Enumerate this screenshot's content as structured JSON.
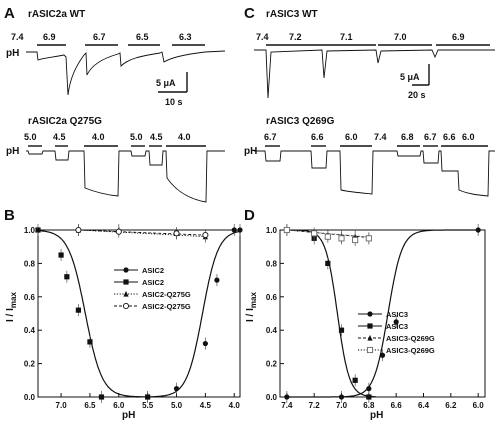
{
  "panels": {
    "A": {
      "letter": "A",
      "top": {
        "title": "rASIC2a WT",
        "ph_label": "pH",
        "ph_values": [
          "7.4",
          "6.9",
          "6.7",
          "6.5",
          "6.3"
        ],
        "scale_current": "5 μA",
        "scale_time": "10 s"
      },
      "bottom": {
        "title": "rASIC2a Q275G",
        "ph_label": "pH",
        "ph_values": [
          "5.0",
          "4.5",
          "4.0",
          "5.0",
          "4.5",
          "4.0"
        ]
      }
    },
    "C": {
      "letter": "C",
      "top": {
        "title": "rASIC3 WT",
        "ph_label": "pH",
        "ph_values": [
          "7.4",
          "7.2",
          "7.1",
          "7.0",
          "6.9"
        ],
        "scale_current": "5 μA",
        "scale_time": "20 s"
      },
      "bottom": {
        "title": "rASIC3 Q269G",
        "ph_label": "pH",
        "ph_values": [
          "6.7",
          "6.6",
          "6.0",
          "7.4",
          "6.8",
          "6.7",
          "6.6",
          "6.0"
        ]
      }
    }
  },
  "chart_data": [
    {
      "panel": "B",
      "type": "scatter",
      "xlabel": "pH",
      "ylabel": "I / I",
      "ylabel_sub": "max",
      "xlim": [
        7.4,
        3.9
      ],
      "ylim": [
        0,
        1.0
      ],
      "x_ticks": [
        "7.0",
        "6.5",
        "6.0",
        "5.5",
        "5.0",
        "4.5",
        "4.0"
      ],
      "x_tick_values": [
        7.0,
        6.5,
        6.0,
        5.5,
        5.0,
        4.5,
        4.0
      ],
      "y_ticks": [
        "0.0",
        "0.2",
        "0.4",
        "0.6",
        "0.8",
        "1.0"
      ],
      "y_tick_values": [
        0.0,
        0.2,
        0.4,
        0.6,
        0.8,
        1.0
      ],
      "legend_position": "center-right",
      "series": [
        {
          "name": "ASIC2",
          "marker": "circle",
          "line": "solid",
          "x": [
            5.5,
            5.0,
            4.5,
            4.3,
            4.0,
            3.9
          ],
          "y": [
            0.0,
            0.05,
            0.32,
            0.7,
            1.0,
            1.0
          ]
        },
        {
          "name": "ASIC2",
          "marker": "square",
          "line": "solid",
          "x": [
            7.4,
            7.0,
            6.9,
            6.7,
            6.5,
            6.3,
            5.5
          ],
          "y": [
            1.0,
            0.85,
            0.72,
            0.52,
            0.33,
            0.0,
            0.0
          ]
        },
        {
          "name": "ASIC2-Q275G",
          "marker": "triangle",
          "line": "dotted",
          "x": [
            6.7,
            6.0,
            5.0,
            4.5
          ],
          "y": [
            1.0,
            1.0,
            0.98,
            0.96
          ]
        },
        {
          "name": "ASIC2-Q275G",
          "marker": "open-circle",
          "line": "dashed",
          "x": [
            6.7,
            6.0,
            5.0,
            4.5
          ],
          "y": [
            1.0,
            0.99,
            0.98,
            0.97
          ]
        }
      ]
    },
    {
      "panel": "D",
      "type": "scatter",
      "xlabel": "pH",
      "ylabel": "I / I",
      "ylabel_sub": "max",
      "xlim": [
        7.45,
        5.95
      ],
      "ylim": [
        0,
        1.0
      ],
      "x_ticks": [
        "7.4",
        "7.2",
        "7.0",
        "6.8",
        "6.6",
        "6.4",
        "6.2",
        "6.0"
      ],
      "x_tick_values": [
        7.4,
        7.2,
        7.0,
        6.8,
        6.6,
        6.4,
        6.2,
        6.0
      ],
      "y_ticks": [
        "0.0",
        "0.2",
        "0.4",
        "0.6",
        "0.8",
        "1.0"
      ],
      "y_tick_values": [
        0.0,
        0.2,
        0.4,
        0.6,
        0.8,
        1.0
      ],
      "legend_position": "center-right",
      "series": [
        {
          "name": "ASIC3",
          "marker": "circle",
          "line": "solid",
          "x": [
            7.4,
            7.0,
            6.8,
            6.7,
            6.6,
            6.0
          ],
          "y": [
            0.0,
            0.0,
            0.05,
            0.25,
            0.45,
            1.0
          ]
        },
        {
          "name": "ASIC3",
          "marker": "square",
          "line": "solid",
          "x": [
            7.4,
            7.2,
            7.1,
            7.0,
            6.9,
            6.8
          ],
          "y": [
            1.0,
            0.95,
            0.8,
            0.4,
            0.1,
            0.0
          ]
        },
        {
          "name": "ASIC3-Q269G",
          "marker": "triangle",
          "line": "dashed",
          "x": [
            7.4,
            7.2,
            7.1,
            7.0,
            6.9,
            6.8
          ],
          "y": [
            1.0,
            0.97,
            0.97,
            0.96,
            0.96,
            0.95
          ]
        },
        {
          "name": "ASIC3-Q269G",
          "marker": "open-square",
          "line": "dotted",
          "x": [
            7.4,
            7.2,
            7.1,
            7.0,
            6.9,
            6.8
          ],
          "y": [
            1.0,
            0.98,
            0.96,
            0.95,
            0.94,
            0.95
          ]
        }
      ]
    }
  ],
  "chart_labels": {
    "B": "B",
    "D": "D"
  }
}
